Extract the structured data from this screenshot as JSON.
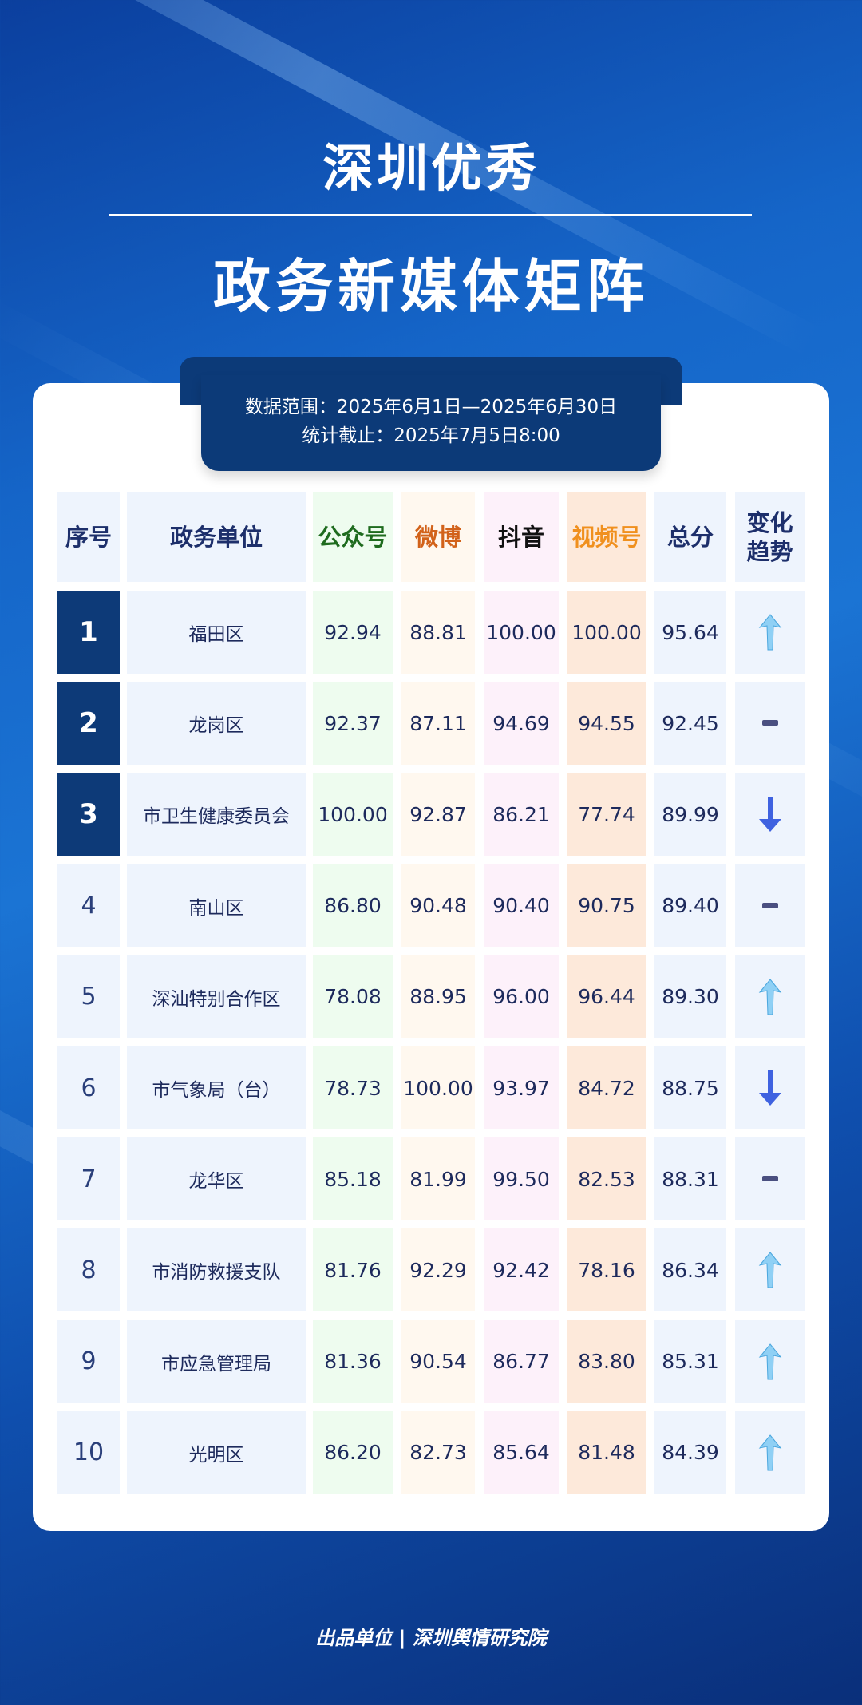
{
  "title_line1": "深圳优秀",
  "title_line2": "政务新媒体矩阵",
  "banner": {
    "range": "数据范围：2025年6月1日—2025年6月30日",
    "cutoff": "统计截止：2025年7月5日8:00"
  },
  "table": {
    "headers": [
      "序号",
      "政务单位",
      "公众号",
      "微博",
      "抖音",
      "视频号",
      "总分",
      "变化\n趋势"
    ],
    "header_colors": [
      "#1d2f6b",
      "#1d2f6b",
      "#1e6b1e",
      "#d2621a",
      "#111111",
      "#f0901e",
      "#1d2f6b",
      "#1d2f6b"
    ],
    "column_bg": [
      "#eef4fd",
      "#eef4fd",
      "#eefcef",
      "#fff8ef",
      "#fdf1fa",
      "#fde9da",
      "#eef4fd",
      "#eef4fd"
    ],
    "rows": [
      {
        "rank": "1",
        "unit": "福田区",
        "gzh": "92.94",
        "weibo": "88.81",
        "douyin": "100.00",
        "sph": "100.00",
        "total": "95.64",
        "trend": "up-arrow"
      },
      {
        "rank": "2",
        "unit": "龙岗区",
        "gzh": "92.37",
        "weibo": "87.11",
        "douyin": "94.69",
        "sph": "94.55",
        "total": "92.45",
        "trend": "flat-dash"
      },
      {
        "rank": "3",
        "unit": "市卫生健康委员会",
        "gzh": "100.00",
        "weibo": "92.87",
        "douyin": "86.21",
        "sph": "77.74",
        "total": "89.99",
        "trend": "down-arrow"
      },
      {
        "rank": "4",
        "unit": "南山区",
        "gzh": "86.80",
        "weibo": "90.48",
        "douyin": "90.40",
        "sph": "90.75",
        "total": "89.40",
        "trend": "flat-dash"
      },
      {
        "rank": "5",
        "unit": "深汕特别合作区",
        "gzh": "78.08",
        "weibo": "88.95",
        "douyin": "96.00",
        "sph": "96.44",
        "total": "89.30",
        "trend": "up-arrow"
      },
      {
        "rank": "6",
        "unit": "市气象局（台）",
        "gzh": "78.73",
        "weibo": "100.00",
        "douyin": "93.97",
        "sph": "84.72",
        "total": "88.75",
        "trend": "down-arrow"
      },
      {
        "rank": "7",
        "unit": "龙华区",
        "gzh": "85.18",
        "weibo": "81.99",
        "douyin": "99.50",
        "sph": "82.53",
        "total": "88.31",
        "trend": "flat-dash"
      },
      {
        "rank": "8",
        "unit": "市消防救援支队",
        "gzh": "81.76",
        "weibo": "92.29",
        "douyin": "92.42",
        "sph": "78.16",
        "total": "86.34",
        "trend": "up-arrow"
      },
      {
        "rank": "9",
        "unit": "市应急管理局",
        "gzh": "81.36",
        "weibo": "90.54",
        "douyin": "86.77",
        "sph": "83.80",
        "total": "85.31",
        "trend": "up-arrow"
      },
      {
        "rank": "10",
        "unit": "光明区",
        "gzh": "86.20",
        "weibo": "82.73",
        "douyin": "85.64",
        "sph": "81.48",
        "total": "84.39",
        "trend": "up-arrow"
      }
    ]
  },
  "footer": "出品单位 | 深圳舆情研究院"
}
